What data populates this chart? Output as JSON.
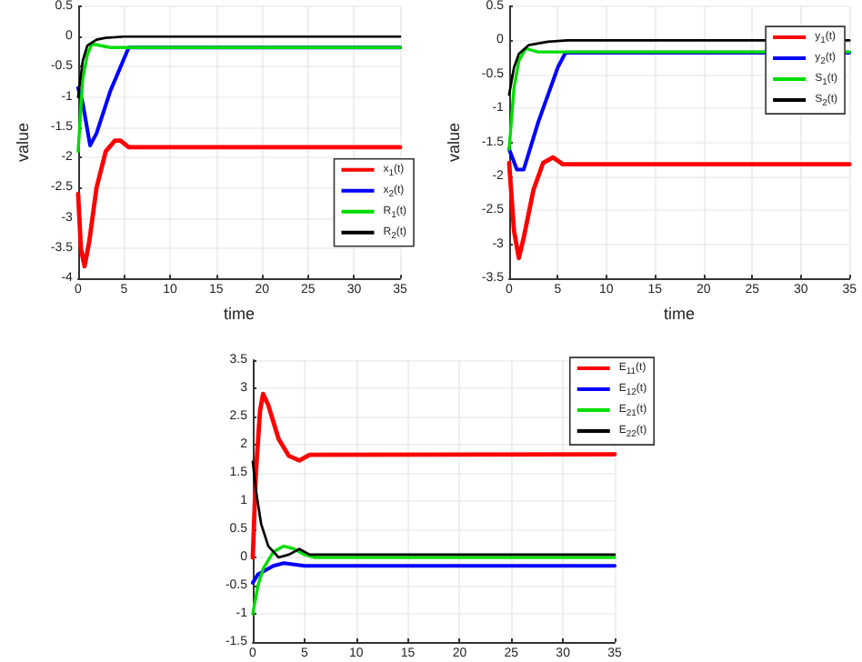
{
  "chart_data": [
    {
      "type": "line",
      "xlabel": "time",
      "ylabel": "value",
      "xlim": [
        0,
        35
      ],
      "xticks": [
        0,
        5,
        10,
        15,
        20,
        25,
        30,
        35
      ],
      "ylim": [
        -4,
        0.5
      ],
      "yticks": [
        -4,
        -3.5,
        -3,
        -2.5,
        -2,
        -1.5,
        -1,
        -0.5,
        0,
        0.5
      ],
      "grid": true,
      "legend": "right",
      "marker": "none",
      "line_style": "solid",
      "series": [
        {
          "name": "x$_{1}$(t)",
          "color": "#ff0000",
          "x": [
            0,
            0.3,
            0.7,
            1.2,
            2,
            3,
            4,
            4.6,
            5.5,
            35
          ],
          "values": [
            -2.6,
            -3.5,
            -3.8,
            -3.4,
            -2.5,
            -1.9,
            -1.72,
            -1.72,
            -1.83,
            -1.83
          ]
        },
        {
          "name": "x$_{2}$(t)",
          "color": "#0000ff",
          "x": [
            0,
            0.5,
            1.3,
            2,
            3.5,
            5.5,
            35
          ],
          "values": [
            -0.85,
            -1.1,
            -1.8,
            -1.6,
            -0.9,
            -0.18,
            -0.18
          ]
        },
        {
          "name": "R$_{1}$(t)",
          "color": "#00dd00",
          "x": [
            0,
            0.5,
            1,
            1.5,
            2.5,
            3.5,
            35
          ],
          "values": [
            -1.9,
            -0.7,
            -0.3,
            -0.12,
            -0.15,
            -0.18,
            -0.18
          ]
        },
        {
          "name": "R$_{2}$(t)",
          "color": "#000000",
          "x": [
            0,
            0.5,
            1,
            2,
            3,
            5,
            35
          ],
          "values": [
            -1,
            -0.4,
            -0.15,
            -0.05,
            -0.02,
            0,
            0
          ]
        }
      ]
    },
    {
      "type": "line",
      "xlabel": "time",
      "ylabel": "value",
      "xlim": [
        0,
        35
      ],
      "xticks": [
        0,
        5,
        10,
        15,
        20,
        25,
        30,
        35
      ],
      "ylim": [
        -3.5,
        0.5
      ],
      "yticks": [
        -3.5,
        -3,
        -2.5,
        -2,
        -1.5,
        -1,
        -0.5,
        0,
        0.5
      ],
      "grid": true,
      "legend": "top right",
      "marker": "none",
      "line_style": "solid",
      "series": [
        {
          "name": "y$_{1}$(t)",
          "color": "#ff0000",
          "x": [
            0,
            0.5,
            1,
            1.5,
            2.5,
            3.5,
            4.5,
            5.5,
            35
          ],
          "values": [
            -1.8,
            -2.8,
            -3.2,
            -2.9,
            -2.2,
            -1.8,
            -1.72,
            -1.82,
            -1.82
          ]
        },
        {
          "name": "y$_{2}$(t)",
          "color": "#0000ff",
          "x": [
            0,
            0.8,
            1.5,
            3,
            5,
            5.8,
            35
          ],
          "values": [
            -1.6,
            -1.9,
            -1.9,
            -1.2,
            -0.4,
            -0.18,
            -0.18
          ]
        },
        {
          "name": "S$_{1}$(t)",
          "color": "#00dd00",
          "x": [
            0,
            0.5,
            1,
            1.7,
            3,
            35
          ],
          "values": [
            -1.6,
            -0.7,
            -0.3,
            -0.12,
            -0.17,
            -0.17
          ]
        },
        {
          "name": "S$_{2}$(t)",
          "color": "#000000",
          "x": [
            0,
            0.5,
            1,
            2,
            4,
            6,
            35
          ],
          "values": [
            -0.8,
            -0.4,
            -0.2,
            -0.07,
            -0.02,
            0,
            0
          ]
        }
      ]
    },
    {
      "type": "line",
      "xlim": [
        0,
        35
      ],
      "xticks": [
        0,
        5,
        10,
        15,
        20,
        25,
        30,
        35
      ],
      "ylim": [
        -1.5,
        3.5
      ],
      "yticks": [
        -1.5,
        -1,
        -0.5,
        0,
        0.5,
        1,
        1.5,
        2,
        2.5,
        3,
        3.5
      ],
      "grid": true,
      "legend": "top right",
      "marker": "none",
      "line_style": "solid",
      "series": [
        {
          "name": "E$_{11}$(t)",
          "color": "#ff0000",
          "x": [
            0,
            0.3,
            0.7,
            1,
            1.5,
            2.5,
            3.5,
            4.5,
            5.5,
            35
          ],
          "values": [
            0,
            1.5,
            2.6,
            2.9,
            2.7,
            2.1,
            1.8,
            1.72,
            1.82,
            1.83
          ]
        },
        {
          "name": "E$_{12}$(t)",
          "color": "#0000ff",
          "x": [
            0,
            0.5,
            1,
            2,
            3,
            5,
            35
          ],
          "values": [
            -0.45,
            -0.3,
            -0.25,
            -0.15,
            -0.1,
            -0.15,
            -0.15
          ]
        },
        {
          "name": "E$_{21}$(t)",
          "color": "#00dd00",
          "x": [
            0,
            0.5,
            1,
            2,
            3,
            4,
            5,
            6,
            35
          ],
          "values": [
            -1,
            -0.5,
            -0.2,
            0.1,
            0.2,
            0.15,
            0.05,
            0,
            0
          ]
        },
        {
          "name": "E$_{22}$(t)",
          "color": "#000000",
          "x": [
            0,
            0.3,
            0.8,
            1.5,
            2.5,
            3.5,
            4.5,
            5.5,
            35
          ],
          "values": [
            1.7,
            1.2,
            0.6,
            0.2,
            0,
            0.05,
            0.15,
            0.05,
            0.05
          ]
        }
      ]
    }
  ]
}
